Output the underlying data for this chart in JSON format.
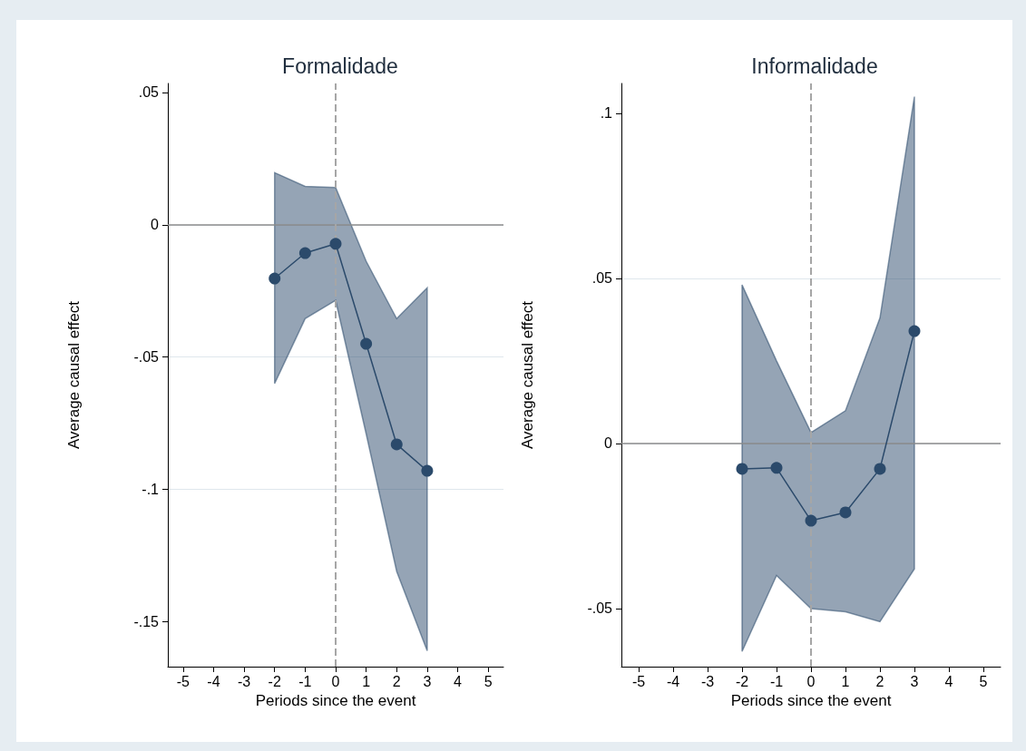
{
  "chart_data": [
    {
      "type": "line",
      "title": "Formalidade",
      "xlabel": "Periods since the event",
      "ylabel": "Average causal effect",
      "x": [
        -2,
        -1,
        0,
        1,
        2,
        3
      ],
      "series": [
        {
          "color": "#2b4a6b",
          "values": [
            -0.0203,
            -0.0107,
            -0.0072,
            -0.045,
            -0.083,
            -0.093
          ],
          "lower": [
            -0.06,
            -0.0355,
            -0.0286,
            -0.079,
            -0.131,
            -0.161
          ],
          "upper": [
            0.0197,
            0.0145,
            0.0141,
            -0.0138,
            -0.0355,
            -0.0238
          ]
        }
      ],
      "xlim": [
        -5.5,
        5.5
      ],
      "xticks": [
        -5,
        -4,
        -3,
        -2,
        -1,
        0,
        1,
        2,
        3,
        4,
        5
      ],
      "ylim": [
        -0.167,
        0.0534
      ],
      "yticks": [
        {
          "value": -0.15,
          "label": "-.15"
        },
        {
          "value": -0.1,
          "label": "-.1"
        },
        {
          "value": -0.05,
          "label": "-.05"
        },
        0,
        {
          "value": 0.05,
          "label": ".05"
        }
      ],
      "ref_lines": [
        {
          "axis": "y",
          "value": 0,
          "color": "#8c8c8c",
          "line_style": "solid"
        },
        {
          "axis": "x",
          "value": 0,
          "color": "#a6a6a6",
          "line_style": "dashed"
        }
      ],
      "grid": "y",
      "marker": "circle",
      "line_style": "solid"
    },
    {
      "type": "line",
      "title": "Informalidade",
      "xlabel": "Periods since the event",
      "ylabel": "Average causal effect",
      "x": [
        -2,
        -1,
        0,
        1,
        2,
        3
      ],
      "series": [
        {
          "color": "#2b4a6b",
          "values": [
            -0.0077,
            -0.0074,
            -0.0234,
            -0.0209,
            -0.0077,
            0.034
          ],
          "lower": [
            -0.063,
            -0.04,
            -0.05,
            -0.051,
            -0.054,
            -0.038
          ],
          "upper": [
            0.048,
            0.025,
            0.0033,
            0.0099,
            0.038,
            0.105
          ]
        }
      ],
      "xlim": [
        -5.5,
        5.5
      ],
      "xticks": [
        -5,
        -4,
        -3,
        -2,
        -1,
        0,
        1,
        2,
        3,
        4,
        5
      ],
      "ylim": [
        -0.0676,
        0.109
      ],
      "yticks": [
        {
          "value": -0.05,
          "label": "-.05"
        },
        0,
        {
          "value": 0.05,
          "label": ".05"
        },
        {
          "value": 0.1,
          "label": ".1"
        }
      ],
      "ref_lines": [
        {
          "axis": "y",
          "value": 0,
          "color": "#8c8c8c",
          "line_style": "solid"
        },
        {
          "axis": "x",
          "value": 0,
          "color": "#a6a6a6",
          "line_style": "dashed"
        }
      ],
      "grid": "y",
      "marker": "circle",
      "line_style": "solid"
    }
  ]
}
